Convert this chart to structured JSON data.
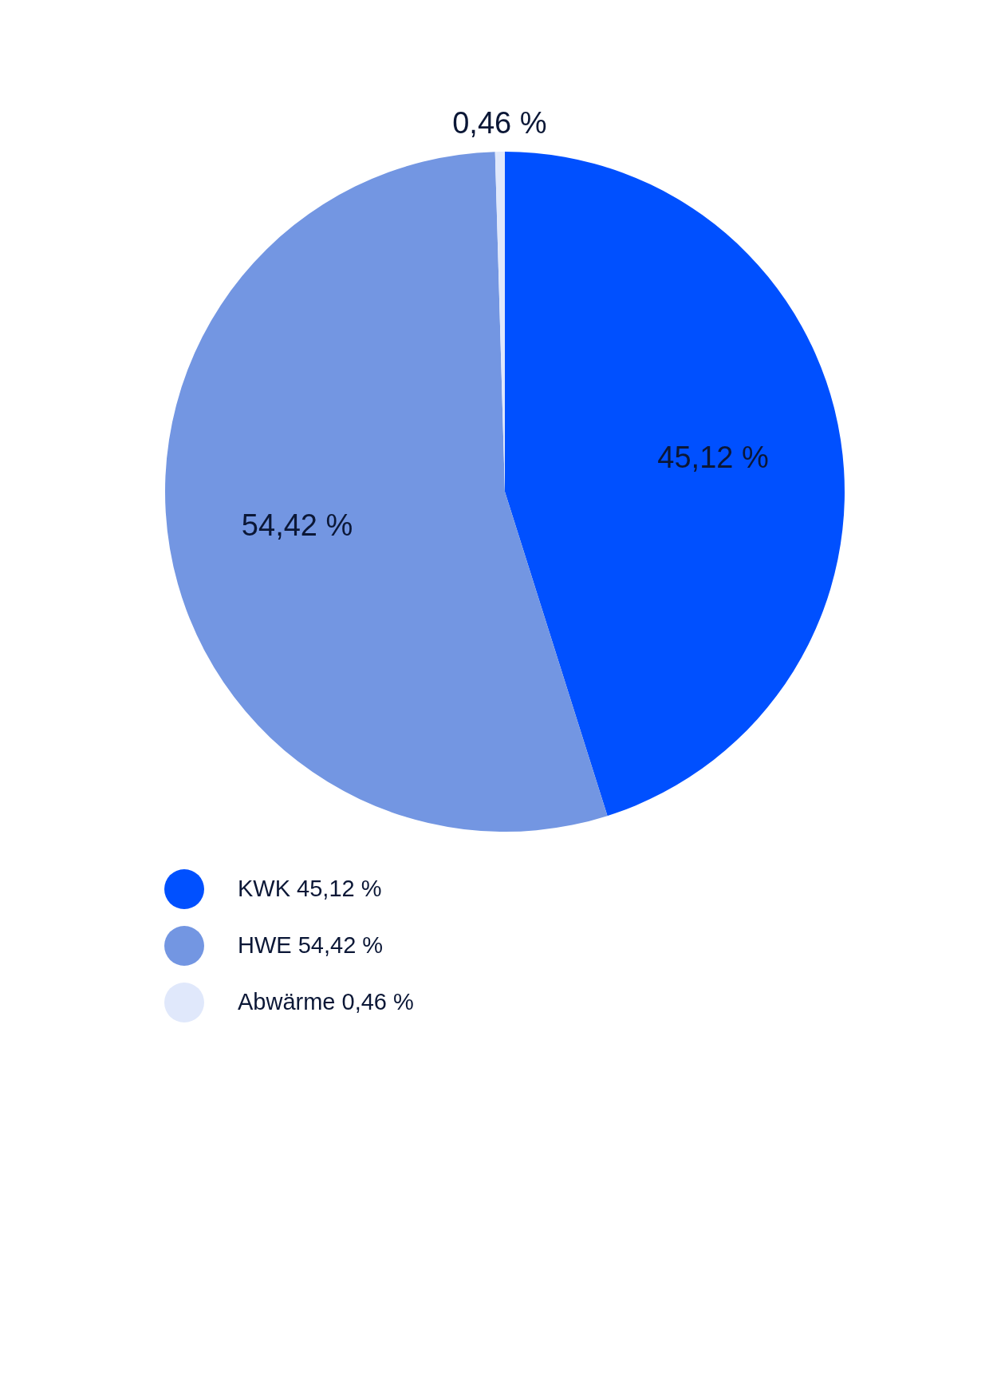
{
  "chart_data": {
    "type": "pie",
    "categories": [
      "KWK 45,12 %",
      "HWE 54,42 %",
      "Abwärme 0,46 %"
    ],
    "values": [
      45.12,
      54.42,
      0.46
    ],
    "colors": [
      "#0050ff",
      "#7396e2",
      "#e0e8fb"
    ],
    "value_labels": [
      "45,12 %",
      "54,42 %",
      "0,46 %"
    ],
    "legend": "bottom left"
  }
}
